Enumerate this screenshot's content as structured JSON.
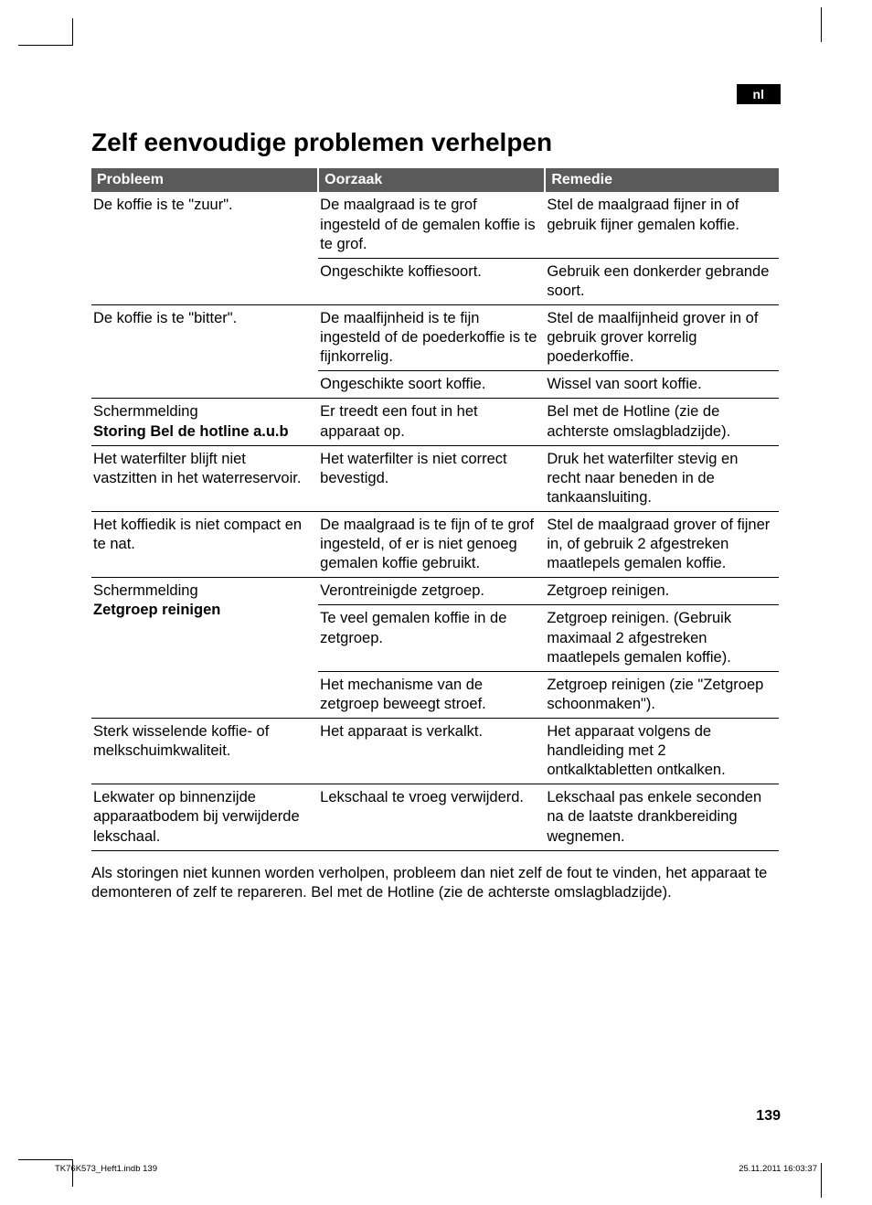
{
  "lang_tag": "nl",
  "title": "Zelf eenvoudige problemen verhelpen",
  "headers": {
    "problem": "Probleem",
    "cause": "Oorzaak",
    "remedy": "Remedie"
  },
  "rows": [
    {
      "problem": "De koffie is te \"zuur\".",
      "problem_bold": "",
      "rowspan": 2,
      "cells": [
        {
          "cause": "De maalgraad is te grof ingesteld of de gemalen koffie is te grof.",
          "remedy": "Stel de maalgraad fijner in of gebruik fijner gemalen koffie."
        },
        {
          "cause": "Ongeschikte koffiesoort.",
          "remedy": "Gebruik een donkerder gebrande soort."
        }
      ]
    },
    {
      "problem": "De koffie is te \"bitter\".",
      "problem_bold": "",
      "rowspan": 2,
      "cells": [
        {
          "cause": "De maalfijnheid is te fijn ingesteld of de poederkoffie is te fijnkorrelig.",
          "remedy": "Stel de maalfijnheid grover in of gebruik grover korrelig poederkoffie."
        },
        {
          "cause": "Ongeschikte soort koffie.",
          "remedy": "Wissel van soort koffie."
        }
      ]
    },
    {
      "problem": "Schermmelding",
      "problem_bold": "Storing Bel de hotline a.u.b",
      "rowspan": 1,
      "cells": [
        {
          "cause": "Er treedt een fout in het apparaat op.",
          "remedy": "Bel met de Hotline (zie de achterste omslagbladzijde)."
        }
      ]
    },
    {
      "problem": "Het waterfilter blijft niet vastzitten in het waterreservoir.",
      "problem_bold": "",
      "rowspan": 1,
      "cells": [
        {
          "cause": "Het waterfilter is niet correct bevestigd.",
          "remedy": "Druk het waterfilter stevig en recht naar beneden in de tankaansluiting."
        }
      ]
    },
    {
      "problem": "Het koffiedik is niet compact en te nat.",
      "problem_bold": "",
      "rowspan": 1,
      "cells": [
        {
          "cause": "De maalgraad is te fijn of te grof ingesteld, of er is niet genoeg gemalen koffie gebruikt.",
          "remedy": "Stel de maalgraad grover of fijner in, of gebruik 2 afgestreken maatlepels gemalen koffie."
        }
      ]
    },
    {
      "problem": "Schermmelding",
      "problem_bold": "Zetgroep reinigen",
      "rowspan": 3,
      "cells": [
        {
          "cause": "Verontreinigde zetgroep.",
          "remedy": "Zetgroep reinigen."
        },
        {
          "cause": "Te veel gemalen koffie in de zetgroep.",
          "remedy": "Zetgroep reinigen. (Gebruik maximaal 2 afgestreken maatlepels gemalen koffie)."
        },
        {
          "cause": "Het mechanisme van de zetgroep beweegt stroef.",
          "remedy": "Zetgroep reinigen (zie \"Zetgroep schoonmaken\")."
        }
      ]
    },
    {
      "problem": "Sterk wisselende koffie- of melkschuimkwaliteit.",
      "problem_bold": "",
      "rowspan": 1,
      "cells": [
        {
          "cause": "Het apparaat is verkalkt.",
          "remedy": "Het apparaat volgens de handleiding met 2 ontkalktabletten ontkalken."
        }
      ]
    },
    {
      "problem": "Lekwater op binnenzijde apparaatbodem bij verwijderde lekschaal.",
      "problem_bold": "",
      "rowspan": 1,
      "cells": [
        {
          "cause": "Lekschaal te vroeg verwijderd.",
          "remedy": "Lekschaal pas enkele seconden na de laatste drankbereiding wegnemen."
        }
      ]
    }
  ],
  "footnote": "Als storingen niet kunnen worden verholpen, probleem dan niet zelf de fout te vinden, het apparaat te demonteren of zelf te repareren. Bel met de Hotline (zie de achterste omslagbladzijde).",
  "page_number": "139",
  "footer_left": "TK76K573_Heft1.indb   139",
  "footer_right": "25.11.2011   16:03:37",
  "colors": {
    "header_bg": "#5a5a5a",
    "header_fg": "#ffffff",
    "border": "#000000",
    "lang_bg": "#000000",
    "lang_fg": "#ffffff"
  }
}
